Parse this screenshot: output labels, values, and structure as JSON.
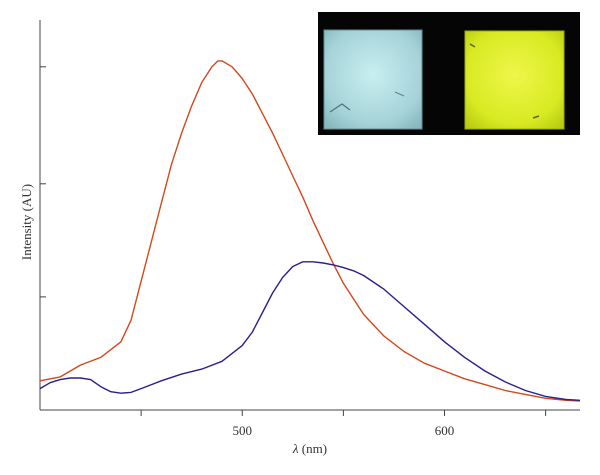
{
  "chart_data": {
    "type": "line",
    "title": "",
    "xlabel": {
      "symbol": "λ",
      "unit": " (nm)"
    },
    "ylabel": "Intensity (AU)",
    "xlim": [
      400,
      667
    ],
    "ylim": [
      0,
      1
    ],
    "x_ticks": [
      {
        "value": 450,
        "label": ""
      },
      {
        "value": 500,
        "label": "500"
      },
      {
        "value": 550,
        "label": ""
      },
      {
        "value": 600,
        "label": "600"
      },
      {
        "value": 650,
        "label": ""
      }
    ],
    "y_ticks": [
      0.29,
      0.58,
      0.88
    ],
    "grid": false,
    "legend": "none",
    "series": [
      {
        "color": "#d2491c",
        "points": [
          [
            400,
            0.075
          ],
          [
            410,
            0.085
          ],
          [
            420,
            0.115
          ],
          [
            430,
            0.135
          ],
          [
            440,
            0.175
          ],
          [
            445,
            0.23
          ],
          [
            450,
            0.33
          ],
          [
            455,
            0.43
          ],
          [
            460,
            0.53
          ],
          [
            465,
            0.63
          ],
          [
            470,
            0.71
          ],
          [
            475,
            0.78
          ],
          [
            480,
            0.84
          ],
          [
            485,
            0.88
          ],
          [
            488,
            0.895
          ],
          [
            490,
            0.895
          ],
          [
            495,
            0.88
          ],
          [
            500,
            0.85
          ],
          [
            505,
            0.81
          ],
          [
            510,
            0.76
          ],
          [
            515,
            0.71
          ],
          [
            520,
            0.655
          ],
          [
            525,
            0.6
          ],
          [
            530,
            0.545
          ],
          [
            535,
            0.485
          ],
          [
            540,
            0.43
          ],
          [
            545,
            0.375
          ],
          [
            550,
            0.325
          ],
          [
            555,
            0.285
          ],
          [
            560,
            0.245
          ],
          [
            570,
            0.19
          ],
          [
            580,
            0.15
          ],
          [
            590,
            0.12
          ],
          [
            600,
            0.1
          ],
          [
            610,
            0.08
          ],
          [
            620,
            0.065
          ],
          [
            630,
            0.05
          ],
          [
            640,
            0.04
          ],
          [
            650,
            0.03
          ],
          [
            660,
            0.025
          ],
          [
            667,
            0.023
          ]
        ]
      },
      {
        "color": "#2b1f8c",
        "points": [
          [
            400,
            0.055
          ],
          [
            405,
            0.07
          ],
          [
            410,
            0.078
          ],
          [
            415,
            0.082
          ],
          [
            420,
            0.082
          ],
          [
            425,
            0.078
          ],
          [
            430,
            0.06
          ],
          [
            435,
            0.047
          ],
          [
            440,
            0.043
          ],
          [
            445,
            0.045
          ],
          [
            450,
            0.055
          ],
          [
            460,
            0.075
          ],
          [
            470,
            0.092
          ],
          [
            480,
            0.105
          ],
          [
            490,
            0.125
          ],
          [
            500,
            0.165
          ],
          [
            505,
            0.2
          ],
          [
            510,
            0.25
          ],
          [
            515,
            0.3
          ],
          [
            520,
            0.34
          ],
          [
            525,
            0.368
          ],
          [
            530,
            0.38
          ],
          [
            535,
            0.38
          ],
          [
            540,
            0.377
          ],
          [
            545,
            0.372
          ],
          [
            550,
            0.365
          ],
          [
            555,
            0.357
          ],
          [
            560,
            0.345
          ],
          [
            570,
            0.31
          ],
          [
            580,
            0.265
          ],
          [
            590,
            0.22
          ],
          [
            600,
            0.175
          ],
          [
            610,
            0.135
          ],
          [
            620,
            0.1
          ],
          [
            630,
            0.072
          ],
          [
            640,
            0.05
          ],
          [
            650,
            0.035
          ],
          [
            660,
            0.027
          ],
          [
            667,
            0.025
          ]
        ]
      }
    ]
  },
  "inset": {
    "background": "#050505",
    "samples": [
      {
        "color": "#a8d4d8"
      },
      {
        "color": "#dcec2a"
      }
    ]
  }
}
